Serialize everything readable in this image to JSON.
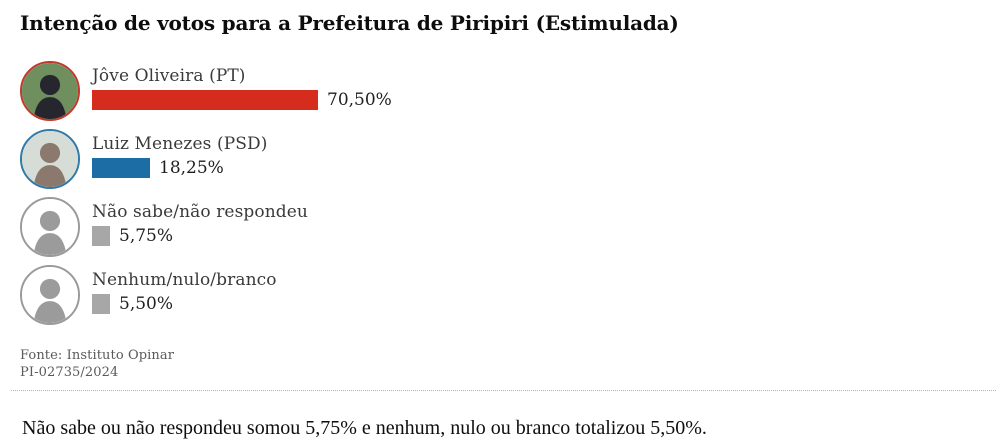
{
  "chart_data": {
    "type": "bar",
    "orientation": "horizontal",
    "title": "Intenção de votos para a Prefeitura de Piripiri (Estimulada)",
    "categories": [
      "Jôve Oliveira (PT)",
      "Luiz Menezes (PSD)",
      "Não sabe/não respondeu",
      "Nenhum/nulo/branco"
    ],
    "values": [
      70.5,
      18.25,
      5.75,
      5.5
    ],
    "value_labels": [
      "70,50%",
      "18,25%",
      "5,75%",
      "5,50%"
    ],
    "bar_colors": [
      "#d62c1e",
      "#1c6da6",
      "#a7a7a7",
      "#a7a7a7"
    ],
    "xlim": [
      0,
      100
    ],
    "grid": false,
    "legend": "none"
  },
  "avatars": [
    {
      "kind": "photo",
      "border_color": "#c0392b",
      "bg": "#6f8f5e",
      "fg": "#26262e"
    },
    {
      "kind": "photo",
      "border_color": "#3079a8",
      "bg": "#d6dcd6",
      "fg": "#8a796c"
    },
    {
      "kind": "silhouette",
      "border_color": "#9a9a9a",
      "bg": "#ffffff",
      "fg": "#9b9b9b"
    },
    {
      "kind": "silhouette",
      "border_color": "#9a9a9a",
      "bg": "#ffffff",
      "fg": "#9b9b9b"
    }
  ],
  "source": {
    "line1": "Fonte: Instituto Opinar",
    "line2": "PI-02735/2024"
  },
  "note": "Não sabe ou não respondeu somou 5,75% e nenhum, nulo ou branco totalizou 5,50%."
}
